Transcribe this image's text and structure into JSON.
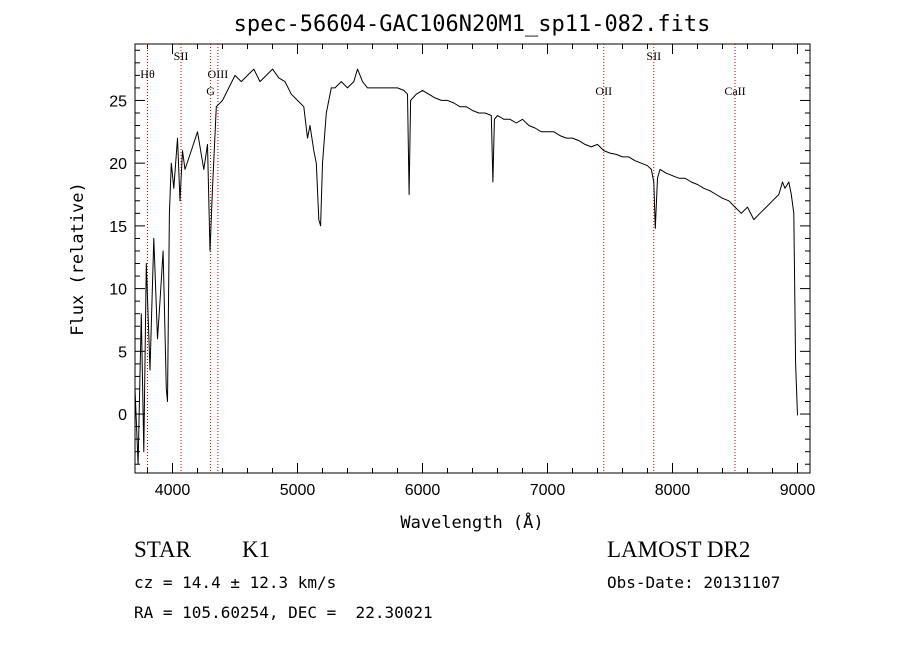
{
  "chart_data": {
    "type": "line",
    "title": "spec-56604-GAC106N20M1_sp11-082.fits",
    "xlabel": "Wavelength (Å)",
    "ylabel": "Flux (relative)",
    "xlim": [
      3700,
      9100
    ],
    "ylim": [
      -4.7,
      29.5
    ],
    "x_ticks": [
      4000,
      5000,
      6000,
      7000,
      8000,
      9000
    ],
    "y_ticks": [
      0,
      5,
      10,
      15,
      20,
      25
    ],
    "line_color": "#000000",
    "marker_color": "#cc0000",
    "grid": false,
    "series": [
      {
        "points": [
          [
            3700,
            2.0
          ],
          [
            3725,
            -4.0
          ],
          [
            3750,
            8.0
          ],
          [
            3770,
            -3.0
          ],
          [
            3790,
            12.0
          ],
          [
            3820,
            3.5
          ],
          [
            3850,
            14.0
          ],
          [
            3880,
            6.0
          ],
          [
            3900,
            9.0
          ],
          [
            3925,
            13.0
          ],
          [
            3950,
            2.0
          ],
          [
            3960,
            1.0
          ],
          [
            3975,
            16.0
          ],
          [
            3990,
            20.0
          ],
          [
            4010,
            18.0
          ],
          [
            4040,
            22.0
          ],
          [
            4060,
            17.0
          ],
          [
            4080,
            21.0
          ],
          [
            4100,
            19.5
          ],
          [
            4150,
            21.0
          ],
          [
            4200,
            22.5
          ],
          [
            4250,
            19.5
          ],
          [
            4280,
            21.5
          ],
          [
            4300,
            13.0
          ],
          [
            4320,
            18.0
          ],
          [
            4350,
            24.5
          ],
          [
            4400,
            25.0
          ],
          [
            4450,
            26.0
          ],
          [
            4500,
            27.0
          ],
          [
            4550,
            26.5
          ],
          [
            4600,
            27.0
          ],
          [
            4650,
            27.5
          ],
          [
            4700,
            26.5
          ],
          [
            4750,
            27.0
          ],
          [
            4800,
            27.5
          ],
          [
            4850,
            26.8
          ],
          [
            4900,
            26.5
          ],
          [
            4950,
            25.5
          ],
          [
            5000,
            25.0
          ],
          [
            5050,
            24.5
          ],
          [
            5080,
            22.0
          ],
          [
            5100,
            23.0
          ],
          [
            5130,
            21.0
          ],
          [
            5150,
            20.0
          ],
          [
            5170,
            15.5
          ],
          [
            5185,
            15.0
          ],
          [
            5200,
            20.0
          ],
          [
            5230,
            24.0
          ],
          [
            5270,
            26.0
          ],
          [
            5300,
            26.0
          ],
          [
            5350,
            26.5
          ],
          [
            5400,
            26.0
          ],
          [
            5450,
            26.5
          ],
          [
            5480,
            27.5
          ],
          [
            5520,
            26.5
          ],
          [
            5560,
            26.0
          ],
          [
            5600,
            26.0
          ],
          [
            5650,
            26.0
          ],
          [
            5700,
            26.0
          ],
          [
            5750,
            26.0
          ],
          [
            5800,
            26.0
          ],
          [
            5850,
            25.8
          ],
          [
            5880,
            25.5
          ],
          [
            5893,
            17.5
          ],
          [
            5905,
            25.0
          ],
          [
            5950,
            25.5
          ],
          [
            6000,
            25.8
          ],
          [
            6050,
            25.5
          ],
          [
            6100,
            25.2
          ],
          [
            6150,
            25.0
          ],
          [
            6200,
            25.0
          ],
          [
            6250,
            24.8
          ],
          [
            6300,
            24.5
          ],
          [
            6350,
            24.5
          ],
          [
            6400,
            24.2
          ],
          [
            6450,
            24.0
          ],
          [
            6500,
            24.0
          ],
          [
            6550,
            23.8
          ],
          [
            6563,
            18.5
          ],
          [
            6575,
            23.5
          ],
          [
            6600,
            23.8
          ],
          [
            6650,
            23.5
          ],
          [
            6700,
            23.5
          ],
          [
            6750,
            23.2
          ],
          [
            6800,
            23.5
          ],
          [
            6850,
            23.0
          ],
          [
            6900,
            22.8
          ],
          [
            6950,
            22.5
          ],
          [
            7000,
            22.5
          ],
          [
            7050,
            22.5
          ],
          [
            7100,
            22.2
          ],
          [
            7150,
            22.0
          ],
          [
            7200,
            22.0
          ],
          [
            7250,
            21.8
          ],
          [
            7300,
            21.5
          ],
          [
            7350,
            21.3
          ],
          [
            7400,
            21.5
          ],
          [
            7450,
            21.0
          ],
          [
            7500,
            20.8
          ],
          [
            7550,
            20.7
          ],
          [
            7600,
            20.5
          ],
          [
            7650,
            20.5
          ],
          [
            7700,
            20.2
          ],
          [
            7750,
            20.0
          ],
          [
            7800,
            19.8
          ],
          [
            7830,
            19.5
          ],
          [
            7850,
            18.5
          ],
          [
            7862,
            14.8
          ],
          [
            7880,
            18.8
          ],
          [
            7900,
            19.5
          ],
          [
            7950,
            19.2
          ],
          [
            8000,
            19.0
          ],
          [
            8050,
            18.8
          ],
          [
            8100,
            18.8
          ],
          [
            8150,
            18.5
          ],
          [
            8200,
            18.3
          ],
          [
            8250,
            18.0
          ],
          [
            8300,
            17.8
          ],
          [
            8350,
            17.5
          ],
          [
            8400,
            17.2
          ],
          [
            8450,
            17.0
          ],
          [
            8500,
            16.5
          ],
          [
            8550,
            16.0
          ],
          [
            8600,
            16.5
          ],
          [
            8650,
            15.5
          ],
          [
            8700,
            16.0
          ],
          [
            8750,
            16.5
          ],
          [
            8800,
            17.0
          ],
          [
            8850,
            17.5
          ],
          [
            8880,
            18.5
          ],
          [
            8900,
            18.0
          ],
          [
            8930,
            18.5
          ],
          [
            8950,
            17.5
          ],
          [
            8970,
            16.0
          ],
          [
            8985,
            4.0
          ],
          [
            9000,
            -0.1
          ]
        ]
      }
    ],
    "lines": [
      {
        "x": 3800,
        "label": "Hθ",
        "level": 1
      },
      {
        "x": 4068,
        "label": "SII",
        "level": 0
      },
      {
        "x": 4305,
        "label": "G",
        "level": 2
      },
      {
        "x": 4363,
        "label": "OIII",
        "level": 1
      },
      {
        "x": 7450,
        "label": "OII",
        "level": 2
      },
      {
        "x": 7850,
        "label": "SII",
        "level": 0
      },
      {
        "x": 8500,
        "label": "CaII",
        "level": 2
      }
    ]
  },
  "info": {
    "object_class": "STAR",
    "subclass": "K1",
    "survey": "LAMOST DR2",
    "cz": "cz = 14.4 ± 12.3 km/s",
    "obs_date": "Obs-Date: 20131107",
    "coords": "RA = 105.60254, DEC =  22.30021"
  }
}
